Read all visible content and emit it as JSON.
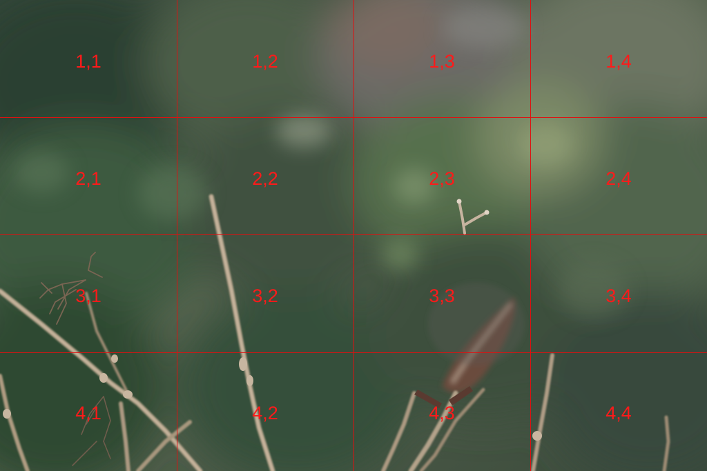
{
  "grid": {
    "rows": 4,
    "columns": 4,
    "line_color": "#e01010",
    "label_color": "#ff1a1a",
    "labels": [
      [
        "1,1",
        "1,2",
        "1,3",
        "1,4"
      ],
      [
        "2,1",
        "2,2",
        "2,3",
        "2,4"
      ],
      [
        "3,1",
        "3,2",
        "3,3",
        "3,4"
      ],
      [
        "4,1",
        "4,2",
        "4,3",
        "4,4"
      ]
    ]
  },
  "photo": {
    "subject": "dry-plant-stems-over-blurred-green-foliage",
    "palette": {
      "foliage_dark": "#2f4430",
      "foliage_mid": "#4f6a4c",
      "foliage_light": "#7f8f74",
      "background_muted": "#6e7266",
      "stem": "#b9a58e",
      "stem_dark": "#6b4b3d"
    }
  }
}
